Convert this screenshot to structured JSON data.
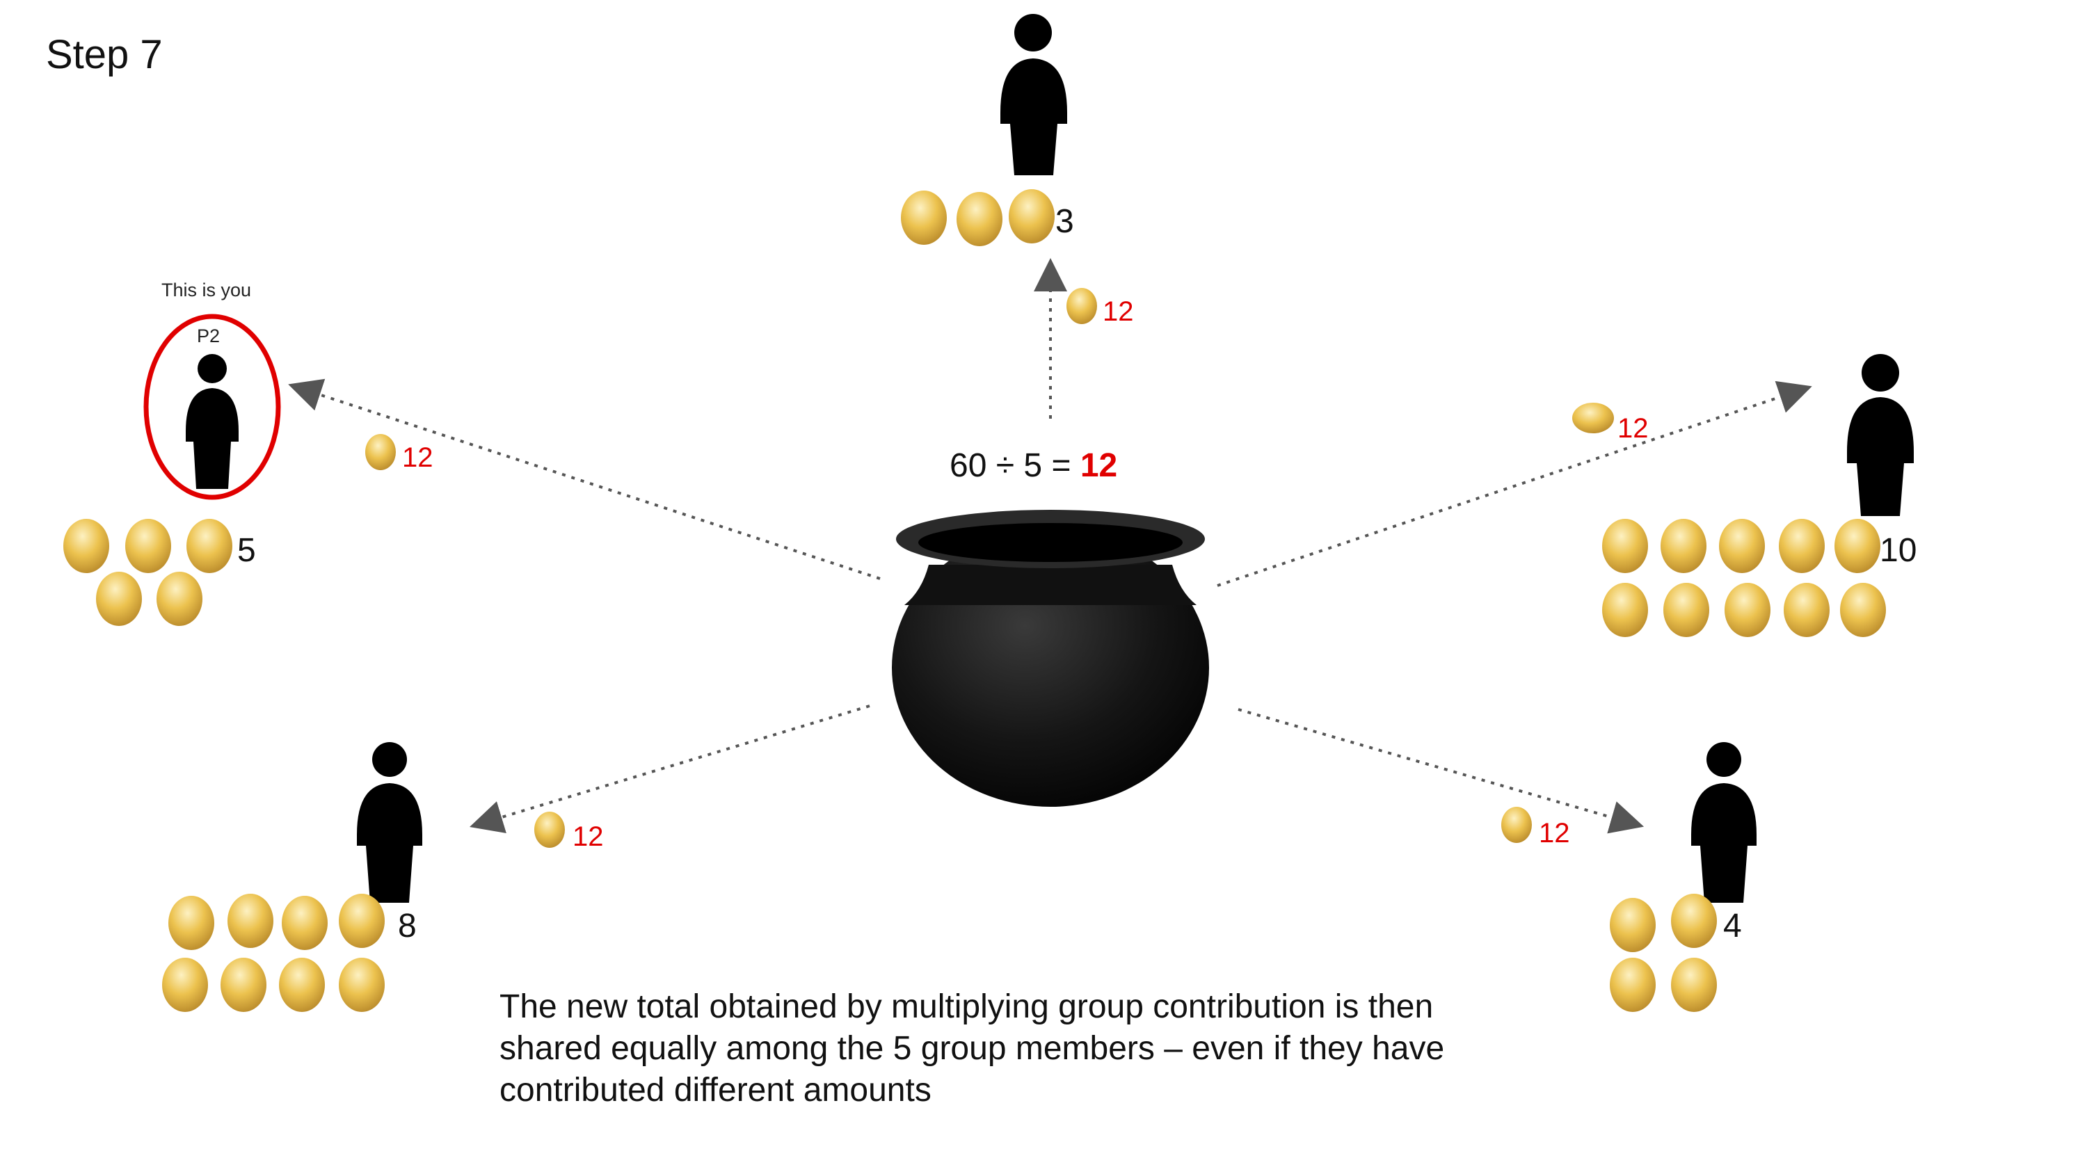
{
  "step_title": "Step 7",
  "you_marker": {
    "label": "This is you",
    "player": "P2"
  },
  "formula": {
    "expression": "60 ÷ 5 = ",
    "result": "12"
  },
  "share_amount": "12",
  "players": [
    {
      "id": "top",
      "coins": 3,
      "count_label": "3"
    },
    {
      "id": "p2",
      "coins": 5,
      "count_label": "5"
    },
    {
      "id": "right",
      "coins": 10,
      "count_label": "10"
    },
    {
      "id": "bottom-left",
      "coins": 8,
      "count_label": "8"
    },
    {
      "id": "bottom-right",
      "coins": 4,
      "count_label": "4"
    }
  ],
  "caption": "The new total obtained by multiplying group contribution is then shared equally among the 5 group members – even if they have contributed different amounts",
  "colors": {
    "highlight": "#e00000",
    "coin_light": "#fbe7a0",
    "coin_mid": "#e8b93c",
    "coin_dark": "#b8892a",
    "figure": "#000000",
    "arrow": "#555555"
  }
}
